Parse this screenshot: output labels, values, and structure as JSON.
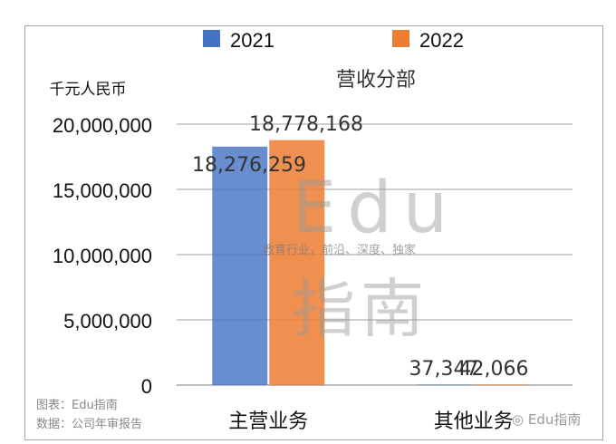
{
  "chart_data": {
    "type": "bar",
    "title": "营收分部",
    "ylabel": "千元人民币",
    "xlabel": "",
    "categories": [
      "主营业务",
      "其他业务"
    ],
    "series": [
      {
        "name": "2021",
        "color": "#4472c4",
        "values": [
          18276259,
          37347
        ],
        "labels": [
          "18,276,259",
          "37,347"
        ]
      },
      {
        "name": "2022",
        "color": "#ed7d31",
        "values": [
          18778168,
          42066
        ],
        "labels": [
          "18,778,168",
          "42,066"
        ]
      }
    ],
    "ylim": [
      0,
      20000000
    ],
    "yticks": [
      0,
      5000000,
      10000000,
      15000000,
      20000000
    ],
    "ytick_labels": [
      "0",
      "5,000,000",
      "10,000,000",
      "15,000,000",
      "20,000,000"
    ],
    "grid": true,
    "legend": "top"
  },
  "watermark": {
    "big": "Edu",
    "big2": "指南",
    "tagline": "教育行业，前沿、深度、独家"
  },
  "footer": {
    "source_chart": "图表：Edu指南",
    "source_data": "数据：公司年审报告"
  },
  "brand": "Edu指南"
}
